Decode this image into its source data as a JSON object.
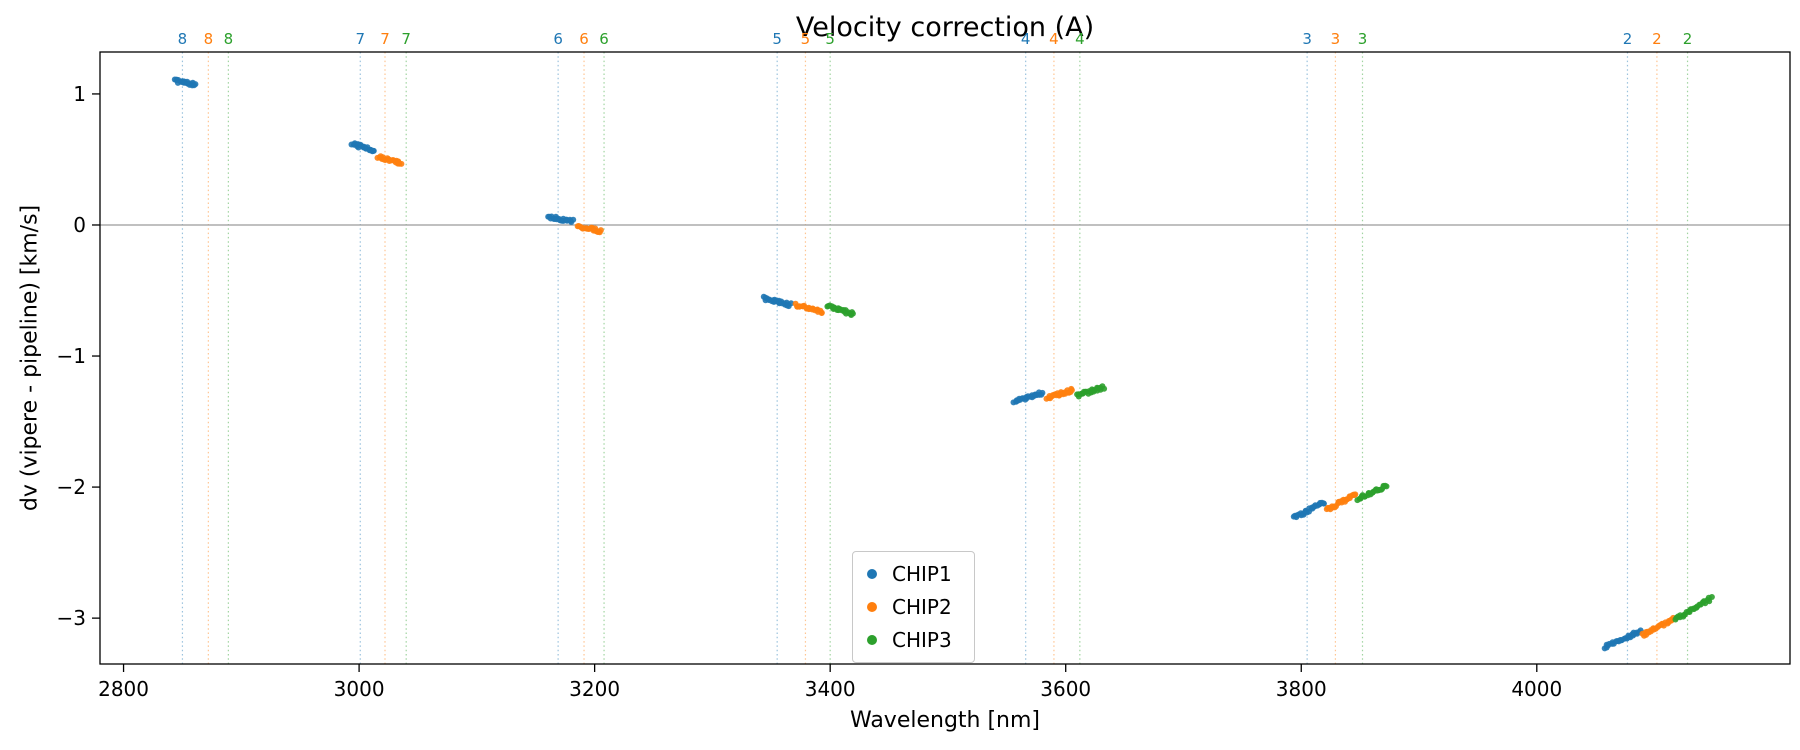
{
  "chart_data": {
    "type": "scatter",
    "title": "Velocity correction (A)",
    "xlabel": "Wavelength [nm]",
    "ylabel": "dv (vipere - pipeline) [km/s]",
    "xlim": [
      2780,
      4215
    ],
    "ylim": [
      -3.35,
      1.32
    ],
    "xticks": [
      2800,
      3000,
      3200,
      3400,
      3600,
      3800,
      4000
    ],
    "yticks": [
      1,
      0,
      -1,
      -2,
      -3
    ],
    "zero_line": 0,
    "grid": false,
    "legend_position": "lower center inside axes",
    "legend_entries": [
      "CHIP1",
      "CHIP2",
      "CHIP3"
    ],
    "colors": {
      "CHIP1": "#1f77b4",
      "CHIP2": "#ff7f0e",
      "CHIP3": "#2ca02c"
    },
    "zero_line_color": "#9b9b9b",
    "order_markers": [
      {
        "label": "8",
        "lines": [
          {
            "series": "CHIP1",
            "x": 2850
          },
          {
            "series": "CHIP2",
            "x": 2872
          },
          {
            "series": "CHIP3",
            "x": 2889
          }
        ]
      },
      {
        "label": "7",
        "lines": [
          {
            "series": "CHIP1",
            "x": 3001
          },
          {
            "series": "CHIP2",
            "x": 3022
          },
          {
            "series": "CHIP3",
            "x": 3040
          }
        ]
      },
      {
        "label": "6",
        "lines": [
          {
            "series": "CHIP1",
            "x": 3169
          },
          {
            "series": "CHIP2",
            "x": 3191
          },
          {
            "series": "CHIP3",
            "x": 3208
          }
        ]
      },
      {
        "label": "5",
        "lines": [
          {
            "series": "CHIP1",
            "x": 3355
          },
          {
            "series": "CHIP2",
            "x": 3379
          },
          {
            "series": "CHIP3",
            "x": 3400
          }
        ]
      },
      {
        "label": "4",
        "lines": [
          {
            "series": "CHIP1",
            "x": 3566
          },
          {
            "series": "CHIP2",
            "x": 3590
          },
          {
            "series": "CHIP3",
            "x": 3612
          }
        ]
      },
      {
        "label": "3",
        "lines": [
          {
            "series": "CHIP1",
            "x": 3805
          },
          {
            "series": "CHIP2",
            "x": 3829
          },
          {
            "series": "CHIP3",
            "x": 3852
          }
        ]
      },
      {
        "label": "2",
        "lines": [
          {
            "series": "CHIP1",
            "x": 4077
          },
          {
            "series": "CHIP2",
            "x": 4102
          },
          {
            "series": "CHIP3",
            "x": 4128
          }
        ]
      }
    ],
    "series": [
      {
        "name": "CHIP1",
        "segments": [
          {
            "order": 8,
            "x0": 2844,
            "x1": 2861,
            "y0": 1.1,
            "y1": 1.07,
            "n": 22
          },
          {
            "order": 7,
            "x0": 2994,
            "x1": 3013,
            "y0": 0.62,
            "y1": 0.57,
            "n": 22
          },
          {
            "order": 6,
            "x0": 3161,
            "x1": 3181,
            "y0": 0.06,
            "y1": 0.03,
            "n": 22
          },
          {
            "order": 5,
            "x0": 3344,
            "x1": 3366,
            "y0": -0.56,
            "y1": -0.61,
            "n": 24
          },
          {
            "order": 4,
            "x0": 3556,
            "x1": 3580,
            "y0": -1.35,
            "y1": -1.28,
            "n": 24
          },
          {
            "order": 3,
            "x0": 3794,
            "x1": 3820,
            "y0": -2.23,
            "y1": -2.12,
            "n": 26
          },
          {
            "order": 2,
            "x0": 4058,
            "x1": 4088,
            "y0": -3.22,
            "y1": -3.1,
            "n": 28
          }
        ]
      },
      {
        "name": "CHIP2",
        "segments": [
          {
            "order": 7,
            "x0": 3016,
            "x1": 3036,
            "y0": 0.52,
            "y1": 0.47,
            "n": 22
          },
          {
            "order": 6,
            "x0": 3186,
            "x1": 3206,
            "y0": -0.01,
            "y1": -0.05,
            "n": 22
          },
          {
            "order": 5,
            "x0": 3371,
            "x1": 3393,
            "y0": -0.61,
            "y1": -0.66,
            "n": 24
          },
          {
            "order": 4,
            "x0": 3584,
            "x1": 3606,
            "y0": -1.32,
            "y1": -1.26,
            "n": 24
          },
          {
            "order": 3,
            "x0": 3822,
            "x1": 3846,
            "y0": -2.17,
            "y1": -2.06,
            "n": 26
          },
          {
            "order": 2,
            "x0": 4090,
            "x1": 4116,
            "y0": -3.13,
            "y1": -3.01,
            "n": 28
          }
        ]
      },
      {
        "name": "CHIP3",
        "segments": [
          {
            "order": 5,
            "x0": 3398,
            "x1": 3420,
            "y0": -0.62,
            "y1": -0.68,
            "n": 24
          },
          {
            "order": 4,
            "x0": 3610,
            "x1": 3632,
            "y0": -1.3,
            "y1": -1.24,
            "n": 24
          },
          {
            "order": 3,
            "x0": 3848,
            "x1": 3872,
            "y0": -2.09,
            "y1": -1.99,
            "n": 26
          },
          {
            "order": 2,
            "x0": 4118,
            "x1": 4148,
            "y0": -3.01,
            "y1": -2.85,
            "n": 28
          }
        ]
      }
    ]
  }
}
